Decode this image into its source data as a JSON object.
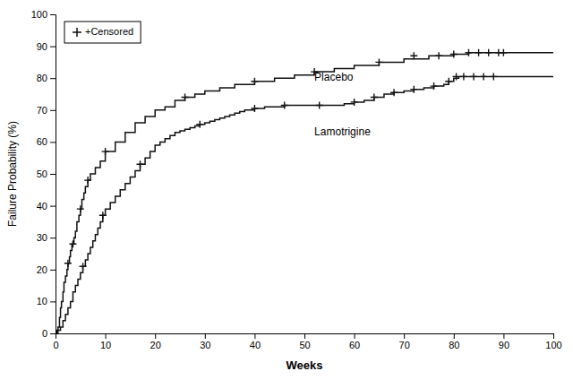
{
  "chart_data": {
    "type": "line",
    "title": "",
    "xlabel": "Weeks",
    "ylabel": "Failure Probability (%)",
    "xlim": [
      0,
      100
    ],
    "ylim": [
      0,
      100
    ],
    "xticks": [
      0,
      10,
      20,
      30,
      40,
      50,
      60,
      70,
      80,
      90,
      100
    ],
    "yticks": [
      0,
      10,
      20,
      30,
      40,
      50,
      60,
      70,
      80,
      90,
      100
    ],
    "legend": "top-left",
    "legend_label": "+Censored",
    "annotations": [
      {
        "text": "Placebo",
        "x": 52,
        "y": 80
      },
      {
        "text": "Lamotrigine",
        "x": 52,
        "y": 63
      }
    ],
    "series": [
      {
        "type": "line",
        "line_style": "step",
        "color": "#111111",
        "x": [
          0,
          0.3,
          0.5,
          0.8,
          1.0,
          1.2,
          1.5,
          1.7,
          2.0,
          2.3,
          2.5,
          2.8,
          3.0,
          3.3,
          3.7,
          4.0,
          4.3,
          4.7,
          5.0,
          5.3,
          5.7,
          6.0,
          6.5,
          7.0,
          8.0,
          9.0,
          10.0,
          12.0,
          14.0,
          16.0,
          18.0,
          20.0,
          22.0,
          24.0,
          26.0,
          28.0,
          30.0,
          33.0,
          36.0,
          40.0,
          44.0,
          48.0,
          52.0,
          56.0,
          60.0,
          65.0,
          70.0,
          75.0,
          80.0,
          83.0,
          86.0,
          88.0,
          90.0,
          100.0
        ],
        "values": [
          0,
          1,
          2,
          5,
          8,
          10,
          13,
          16,
          18,
          20,
          22,
          24,
          26,
          28,
          30,
          32,
          35,
          37,
          39,
          42,
          44,
          46,
          48,
          50,
          52,
          54,
          57,
          60,
          63,
          66,
          68,
          70,
          71,
          73,
          74,
          75,
          76,
          77,
          78,
          79,
          80,
          81,
          82,
          83,
          84,
          85,
          86,
          87,
          87.5,
          88,
          88,
          88,
          88,
          88
        ]
      },
      {
        "type": "line",
        "line_style": "step",
        "color": "#111111",
        "x": [
          0,
          0.5,
          1.0,
          1.5,
          2.0,
          2.5,
          3.0,
          3.5,
          4.0,
          4.5,
          5.0,
          5.5,
          6.0,
          6.5,
          7.0,
          7.5,
          8.0,
          8.5,
          9.0,
          9.5,
          10.0,
          11.0,
          12.0,
          13.0,
          14.0,
          15.0,
          16.0,
          17.0,
          18.0,
          19.0,
          20.0,
          21.0,
          22.0,
          23.0,
          24.0,
          25.0,
          26.0,
          27.0,
          28.0,
          29.0,
          30.0,
          31.0,
          32.0,
          33.0,
          34.0,
          35.0,
          36.0,
          37.0,
          38.0,
          40.0,
          42.0,
          44.0,
          46.0,
          48.0,
          50.0,
          53.0,
          56.0,
          58.0,
          60.0,
          62.0,
          64.0,
          66.0,
          68.0,
          70.0,
          72.0,
          74.0,
          76.0,
          78.0,
          79.0,
          80.0,
          81.0,
          83.0,
          85.0,
          87.0,
          89.0,
          90.0,
          100.0
        ],
        "values": [
          0,
          1,
          2,
          4,
          6,
          8,
          10,
          13,
          15,
          17,
          19,
          21,
          23,
          25,
          27,
          29,
          31,
          33,
          35,
          37,
          39,
          41,
          43,
          45,
          47,
          49,
          51,
          53,
          55,
          57,
          59,
          60,
          61,
          62,
          63,
          63.5,
          64,
          64.5,
          65,
          65.5,
          66,
          66.5,
          67,
          67.5,
          68,
          68.5,
          69,
          69.5,
          70,
          70.5,
          71,
          71,
          71.5,
          71.5,
          71.5,
          71.5,
          71.5,
          72,
          72.5,
          73,
          74,
          75,
          75.5,
          76,
          76.5,
          77,
          77.5,
          78,
          79,
          80,
          80.5,
          80.5,
          80.5,
          80.5,
          80.5,
          80.5,
          80.5
        ]
      },
      {
        "type": "scatter",
        "marker": "plus",
        "color": "#111111",
        "x": [
          2.5,
          3.5,
          5.0,
          6.5,
          10.0,
          26.0,
          40.0,
          52.0,
          65.0,
          72.0,
          77.0,
          80.0,
          83.0,
          85.0,
          87.0,
          89.0,
          90.0
        ],
        "values": [
          22,
          28,
          39,
          48,
          57,
          74,
          79,
          82,
          85,
          87,
          87,
          87.5,
          88,
          88,
          88,
          88,
          88
        ]
      },
      {
        "type": "scatter",
        "marker": "plus",
        "color": "#111111",
        "x": [
          5.5,
          9.5,
          17.0,
          29.0,
          40.0,
          46.0,
          53.0,
          60.0,
          64.0,
          68.0,
          72.0,
          76.0,
          79.0,
          80.5,
          82.0,
          84.0,
          86.0,
          88.0
        ],
        "values": [
          21,
          37,
          53,
          65.5,
          70.5,
          71.5,
          71.5,
          72.5,
          74,
          75.5,
          76.5,
          77.5,
          79,
          80.5,
          80.5,
          80.5,
          80.5,
          80.5
        ]
      }
    ]
  }
}
